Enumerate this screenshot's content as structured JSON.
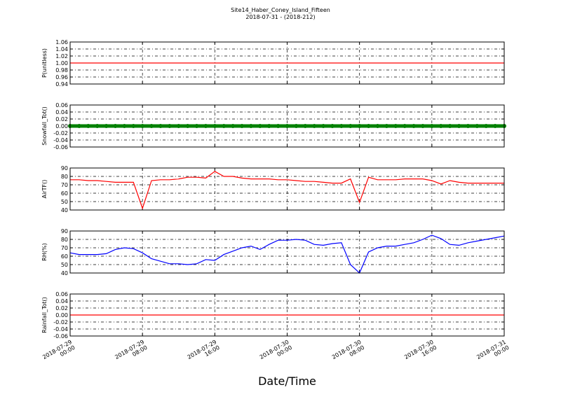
{
  "chart_data": [
    {
      "type": "line",
      "title": "Site14_Haber_Coney_Island_Fifteen",
      "subtitle": "2018-07-31 - (2018-212)",
      "ylabel": "P(unitless)",
      "color": "#ff0000",
      "grid": true,
      "x": [
        "2018-07-29 00:00",
        "2018-07-31 00:00"
      ],
      "values": [
        1,
        1
      ],
      "xlim": [
        "2018-07-29 00:00",
        "2018-07-31 00:00"
      ],
      "xticks": [
        "2018-07-29 00:00",
        "2018-07-29 08:00",
        "2018-07-29 16:00",
        "2018-07-30 00:00",
        "2018-07-30 08:00",
        "2018-07-30 16:00",
        "2018-07-31 00:00"
      ],
      "ylim": [
        0.94,
        1.06
      ],
      "yticks": [
        0.94,
        0.96,
        0.98,
        {
          "value": 1,
          "label": "1.00"
        },
        1.02,
        1.04,
        1.06
      ]
    },
    {
      "type": "scatter",
      "ylabel": "Snowfall_Tot()",
      "color": "#008000",
      "grid": true,
      "x": [
        "2018-07-29 00:00",
        "2018-07-29 01:00",
        "2018-07-29 02:00",
        "2018-07-29 03:00",
        "2018-07-29 04:00",
        "2018-07-29 05:00",
        "2018-07-29 06:00",
        "2018-07-29 07:00",
        "2018-07-29 08:00",
        "2018-07-29 09:00",
        "2018-07-29 10:00",
        "2018-07-29 11:00",
        "2018-07-29 12:00",
        "2018-07-29 13:00",
        "2018-07-29 14:00",
        "2018-07-29 15:00",
        "2018-07-29 16:00",
        "2018-07-29 17:00",
        "2018-07-29 18:00",
        "2018-07-29 19:00",
        "2018-07-29 20:00",
        "2018-07-29 21:00",
        "2018-07-29 22:00",
        "2018-07-29 23:00",
        "2018-07-30 00:00",
        "2018-07-30 01:00",
        "2018-07-30 02:00",
        "2018-07-30 03:00",
        "2018-07-30 04:00",
        "2018-07-30 05:00",
        "2018-07-30 06:00",
        "2018-07-30 07:00",
        "2018-07-30 08:00",
        "2018-07-30 09:00",
        "2018-07-30 10:00",
        "2018-07-30 11:00",
        "2018-07-30 12:00",
        "2018-07-30 13:00",
        "2018-07-30 14:00",
        "2018-07-30 15:00",
        "2018-07-30 16:00",
        "2018-07-30 17:00",
        "2018-07-30 18:00",
        "2018-07-30 19:00",
        "2018-07-30 20:00",
        "2018-07-30 21:00",
        "2018-07-30 22:00",
        "2018-07-30 23:00",
        "2018-07-31 00:00"
      ],
      "values": [
        0,
        0,
        0,
        0,
        0,
        0,
        0,
        0,
        0,
        0,
        0,
        0,
        0,
        0,
        0,
        0,
        0,
        0,
        0,
        0,
        0,
        0,
        0,
        0,
        0,
        0,
        0,
        0,
        0,
        0,
        0,
        0,
        0,
        0,
        0,
        0,
        0,
        0,
        0,
        0,
        0,
        0,
        0,
        0,
        0,
        0,
        0,
        0,
        0
      ],
      "xlim": [
        "2018-07-29 00:00",
        "2018-07-31 00:00"
      ],
      "xticks": [
        "2018-07-29 00:00",
        "2018-07-29 08:00",
        "2018-07-29 16:00",
        "2018-07-30 00:00",
        "2018-07-30 08:00",
        "2018-07-30 16:00",
        "2018-07-31 00:00"
      ],
      "ylim": [
        -0.06,
        0.06
      ],
      "yticks": [
        -0.06,
        -0.04,
        -0.02,
        {
          "value": 0,
          "label": "0.00"
        },
        0.02,
        0.04,
        0.06
      ]
    },
    {
      "type": "line",
      "ylabel": "AirTF()",
      "color": "#ff0000",
      "grid": true,
      "x": [
        "2018-07-29 00:00",
        "2018-07-29 01:00",
        "2018-07-29 02:00",
        "2018-07-29 03:00",
        "2018-07-29 04:00",
        "2018-07-29 05:00",
        "2018-07-29 06:00",
        "2018-07-29 07:00",
        "2018-07-29 08:00",
        "2018-07-29 09:00",
        "2018-07-29 10:00",
        "2018-07-29 11:00",
        "2018-07-29 12:00",
        "2018-07-29 13:00",
        "2018-07-29 14:00",
        "2018-07-29 15:00",
        "2018-07-29 16:00",
        "2018-07-29 17:00",
        "2018-07-29 18:00",
        "2018-07-29 19:00",
        "2018-07-29 20:00",
        "2018-07-29 21:00",
        "2018-07-29 22:00",
        "2018-07-29 23:00",
        "2018-07-30 00:00",
        "2018-07-30 01:00",
        "2018-07-30 02:00",
        "2018-07-30 03:00",
        "2018-07-30 04:00",
        "2018-07-30 05:00",
        "2018-07-30 06:00",
        "2018-07-30 07:00",
        "2018-07-30 08:00",
        "2018-07-30 09:00",
        "2018-07-30 10:00",
        "2018-07-30 11:00",
        "2018-07-30 12:00",
        "2018-07-30 13:00",
        "2018-07-30 14:00",
        "2018-07-30 15:00",
        "2018-07-30 16:00",
        "2018-07-30 17:00",
        "2018-07-30 18:00",
        "2018-07-30 19:00",
        "2018-07-30 20:00",
        "2018-07-30 21:00",
        "2018-07-30 22:00",
        "2018-07-30 23:00",
        "2018-07-31 00:00"
      ],
      "values": [
        76,
        76,
        75,
        75,
        74,
        73,
        73,
        73,
        42,
        75,
        76,
        76,
        77,
        79,
        79,
        78,
        86,
        80,
        80,
        78,
        77,
        77,
        77,
        76,
        76,
        75,
        74,
        74,
        73,
        72,
        72,
        77,
        49,
        79,
        76,
        76,
        76,
        77,
        77,
        77,
        75,
        71,
        75,
        73,
        72,
        72,
        72,
        72,
        72
      ],
      "xlim": [
        "2018-07-29 00:00",
        "2018-07-31 00:00"
      ],
      "xticks": [
        "2018-07-29 00:00",
        "2018-07-29 08:00",
        "2018-07-29 16:00",
        "2018-07-30 00:00",
        "2018-07-30 08:00",
        "2018-07-30 16:00",
        "2018-07-31 00:00"
      ],
      "ylim": [
        40,
        90
      ],
      "yticks": [
        40,
        50,
        60,
        70,
        80,
        90
      ]
    },
    {
      "type": "line",
      "ylabel": "RH(%)",
      "color": "#0000ff",
      "grid": true,
      "x": [
        "2018-07-29 00:00",
        "2018-07-29 01:00",
        "2018-07-29 02:00",
        "2018-07-29 03:00",
        "2018-07-29 04:00",
        "2018-07-29 05:00",
        "2018-07-29 06:00",
        "2018-07-29 07:00",
        "2018-07-29 08:00",
        "2018-07-29 09:00",
        "2018-07-29 10:00",
        "2018-07-29 11:00",
        "2018-07-29 12:00",
        "2018-07-29 13:00",
        "2018-07-29 14:00",
        "2018-07-29 15:00",
        "2018-07-29 16:00",
        "2018-07-29 17:00",
        "2018-07-29 18:00",
        "2018-07-29 19:00",
        "2018-07-29 20:00",
        "2018-07-29 21:00",
        "2018-07-29 22:00",
        "2018-07-29 23:00",
        "2018-07-30 00:00",
        "2018-07-30 01:00",
        "2018-07-30 02:00",
        "2018-07-30 03:00",
        "2018-07-30 04:00",
        "2018-07-30 05:00",
        "2018-07-30 06:00",
        "2018-07-30 07:00",
        "2018-07-30 08:00",
        "2018-07-30 09:00",
        "2018-07-30 10:00",
        "2018-07-30 11:00",
        "2018-07-30 12:00",
        "2018-07-30 13:00",
        "2018-07-30 14:00",
        "2018-07-30 15:00",
        "2018-07-30 16:00",
        "2018-07-30 17:00",
        "2018-07-30 18:00",
        "2018-07-30 19:00",
        "2018-07-30 20:00",
        "2018-07-30 21:00",
        "2018-07-30 22:00",
        "2018-07-30 23:00",
        "2018-07-31 00:00"
      ],
      "values": [
        64,
        62,
        62,
        62,
        63,
        68,
        70,
        69,
        64,
        57,
        54,
        51,
        51,
        50,
        51,
        56,
        55,
        62,
        66,
        70,
        72,
        68,
        74,
        79,
        79,
        80,
        79,
        74,
        73,
        75,
        76,
        50,
        40,
        65,
        70,
        72,
        72,
        74,
        76,
        80,
        85,
        81,
        74,
        73,
        76,
        78,
        80,
        82,
        84
      ],
      "xlim": [
        "2018-07-29 00:00",
        "2018-07-31 00:00"
      ],
      "xticks": [
        "2018-07-29 00:00",
        "2018-07-29 08:00",
        "2018-07-29 16:00",
        "2018-07-30 00:00",
        "2018-07-30 08:00",
        "2018-07-30 16:00",
        "2018-07-31 00:00"
      ],
      "ylim": [
        40,
        90
      ],
      "yticks": [
        40,
        50,
        60,
        70,
        80,
        90
      ]
    },
    {
      "type": "line",
      "ylabel": "Rainfall_Tot()",
      "xlabel": "Date/Time",
      "color": "#ff0000",
      "grid": true,
      "x": [
        "2018-07-29 00:00",
        "2018-07-31 00:00"
      ],
      "values": [
        0,
        0
      ],
      "xlim": [
        "2018-07-29 00:00",
        "2018-07-31 00:00"
      ],
      "xticks": [
        "2018-07-29 00:00",
        "2018-07-29 08:00",
        "2018-07-29 16:00",
        "2018-07-30 00:00",
        "2018-07-30 08:00",
        "2018-07-30 16:00",
        "2018-07-31 00:00"
      ],
      "ylim": [
        -0.06,
        0.06
      ],
      "yticks": [
        -0.06,
        -0.04,
        -0.02,
        {
          "value": 0,
          "label": "0.00"
        },
        0.02,
        0.04,
        0.06
      ]
    }
  ]
}
